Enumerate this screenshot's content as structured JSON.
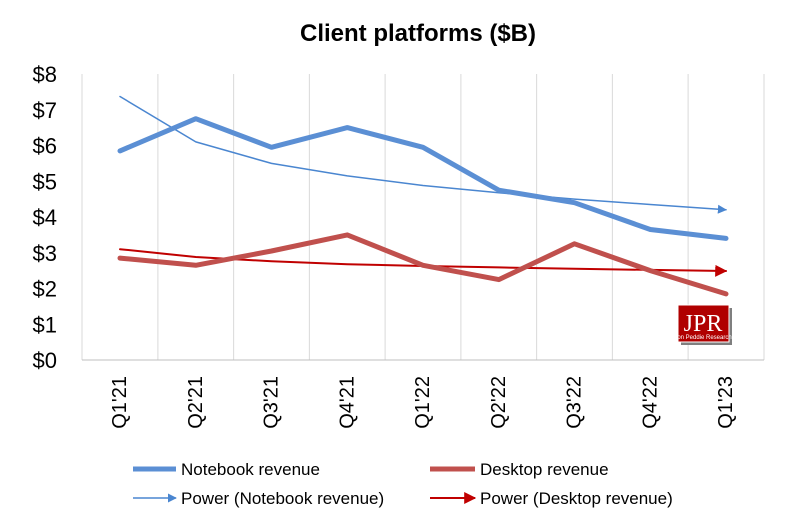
{
  "chart_data": {
    "type": "line",
    "title": "Client platforms ($B)",
    "categories": [
      "Q1'21",
      "Q2'21",
      "Q3'21",
      "Q4'21",
      "Q1'22",
      "Q2'22",
      "Q3'22",
      "Q4'22",
      "Q1'23"
    ],
    "y_ticks": [
      "$0",
      "$1",
      "$2",
      "$3",
      "$4",
      "$5",
      "$6",
      "$7",
      "$8"
    ],
    "ylim": [
      0,
      8
    ],
    "grid": "vertical",
    "legend_position": "bottom",
    "series": [
      {
        "name": "Notebook revenue",
        "color": "#5b8fd4",
        "style": "thick",
        "values": [
          5.85,
          6.75,
          5.95,
          6.5,
          5.95,
          4.75,
          4.4,
          3.65,
          3.4
        ]
      },
      {
        "name": "Desktop revenue",
        "color": "#c0504d",
        "style": "thick",
        "values": [
          2.85,
          2.65,
          3.05,
          3.5,
          2.65,
          2.25,
          3.25,
          2.5,
          1.85
        ]
      },
      {
        "name": "Power (Notebook revenue)",
        "color": "#4a86d0",
        "style": "trendline",
        "values": [
          7.37,
          6.1,
          5.5,
          5.15,
          4.88,
          4.68,
          4.5,
          4.35,
          4.2
        ]
      },
      {
        "name": "Power (Desktop revenue)",
        "color": "#c00000",
        "style": "trendline",
        "values": [
          3.1,
          2.88,
          2.76,
          2.68,
          2.63,
          2.59,
          2.55,
          2.52,
          2.49
        ]
      }
    ]
  },
  "logo": {
    "text": "JPR",
    "subtext": "Jon Peddie Research"
  }
}
